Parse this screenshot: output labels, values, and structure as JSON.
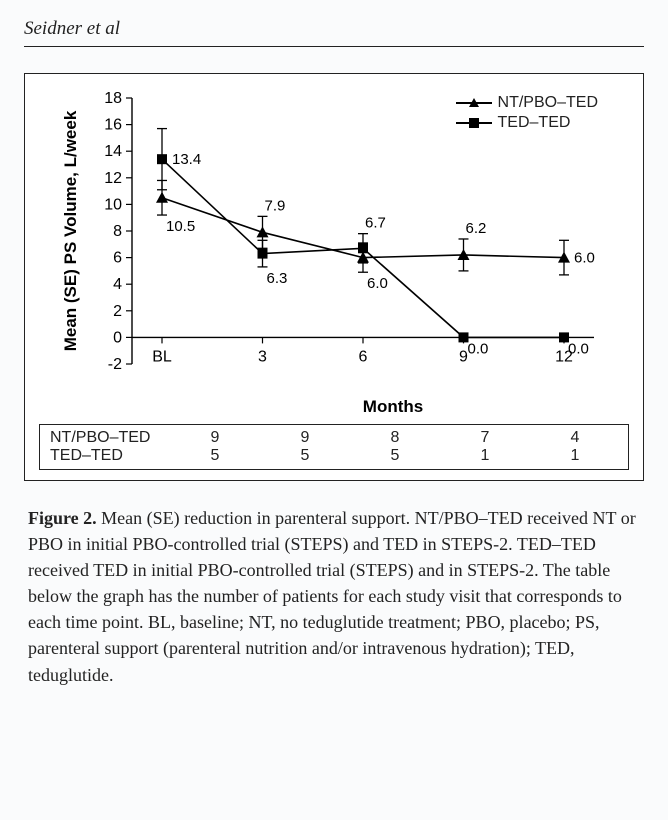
{
  "header": {
    "author": "Seidner et al"
  },
  "chart": {
    "type": "line",
    "ylabel": "Mean (SE) PS Volume,  L/week",
    "xlabel": "Months",
    "ylim": [
      -2,
      18
    ],
    "ytick_step": 2,
    "yticks": [
      -2,
      0,
      2,
      4,
      6,
      8,
      10,
      12,
      14,
      16,
      18
    ],
    "categories": [
      "BL",
      "3",
      "6",
      "9",
      "12"
    ],
    "series": [
      {
        "name": "NT/PBO–TED",
        "marker": "triangle",
        "color": "#000000",
        "values": [
          10.5,
          7.9,
          6.0,
          6.2,
          6.0
        ],
        "errors": [
          1.3,
          1.2,
          1.1,
          1.2,
          1.3
        ],
        "label_positions": [
          "below",
          "above",
          "below",
          "above",
          "right"
        ]
      },
      {
        "name": "TED–TED",
        "marker": "square",
        "color": "#000000",
        "values": [
          13.4,
          6.3,
          6.7,
          0.0,
          0.0
        ],
        "errors": [
          2.3,
          1.0,
          1.1,
          0,
          0
        ],
        "label_positions": [
          "right",
          "below",
          "above",
          "below",
          "below"
        ]
      }
    ],
    "background_color": "#ffffff",
    "axis_color": "#000000",
    "fontsize_axis_label": 17,
    "fontsize_ticks": 16,
    "fontsize_values": 15
  },
  "counts": {
    "rows": [
      {
        "label": "NT/PBO–TED",
        "values": [
          "9",
          "9",
          "8",
          "7",
          "4"
        ]
      },
      {
        "label": "TED–TED",
        "values": [
          "5",
          "5",
          "5",
          "1",
          "1"
        ]
      }
    ]
  },
  "caption": {
    "label": "Figure 2.",
    "text": " Mean (SE) reduction in parenteral support. NT/PBO–TED received NT or PBO in initial PBO-controlled trial (STEPS) and TED in STEPS-2. TED–TED received TED in initial PBO-controlled trial (STEPS) and in STEPS-2. The table below the graph has the number of patients for each study visit that corresponds to each time point. BL, baseline; NT, no teduglutide treatment; PBO, placebo; PS, parenteral support (parenteral nutrition and/or intravenous hydration); TED, teduglutide."
  }
}
